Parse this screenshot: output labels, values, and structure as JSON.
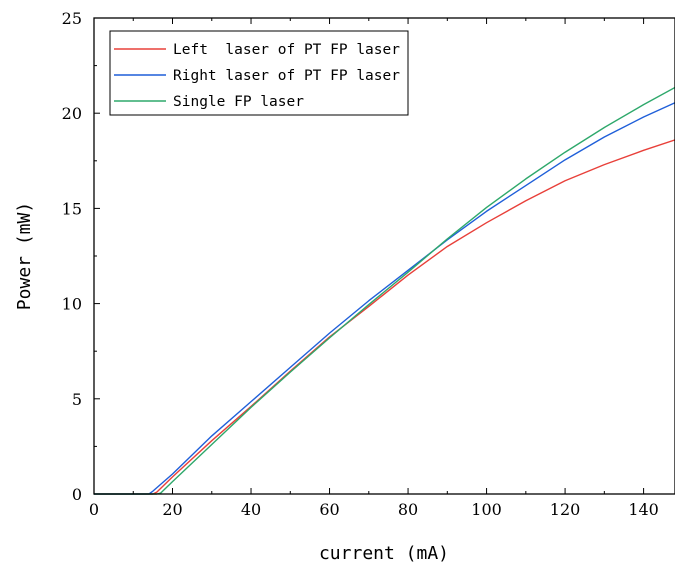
{
  "chart_data": {
    "type": "line",
    "xlabel": "current (mA)",
    "ylabel": "Power (mW)",
    "xlim": [
      0,
      148
    ],
    "ylim": [
      0,
      25
    ],
    "xticks": [
      0,
      20,
      40,
      60,
      80,
      100,
      120,
      140
    ],
    "yticks": [
      0,
      5,
      10,
      15,
      20,
      25
    ],
    "grid": false,
    "legend_position": "top-left",
    "series": [
      {
        "name": "Left  laser of PT FP laser",
        "color": "#e8403a",
        "x": [
          0,
          10,
          15,
          16,
          20,
          30,
          40,
          50,
          60,
          70,
          80,
          90,
          100,
          110,
          120,
          130,
          140,
          148
        ],
        "y": [
          0,
          0,
          0,
          0.1,
          0.9,
          2.8,
          4.6,
          6.45,
          8.25,
          9.85,
          11.5,
          13.0,
          14.25,
          15.4,
          16.45,
          17.3,
          18.05,
          18.6
        ]
      },
      {
        "name": "Right laser of PT FP laser",
        "color": "#1f5fd9",
        "x": [
          0,
          10,
          14,
          15,
          20,
          30,
          40,
          50,
          60,
          70,
          80,
          90,
          100,
          110,
          120,
          130,
          140,
          148
        ],
        "y": [
          0,
          0,
          0,
          0.15,
          1.05,
          3.05,
          4.85,
          6.65,
          8.45,
          10.15,
          11.75,
          13.35,
          14.85,
          16.2,
          17.55,
          18.75,
          19.8,
          20.55
        ]
      },
      {
        "name": "Single FP laser",
        "color": "#2ea86b",
        "x": [
          0,
          10,
          16,
          17,
          20,
          30,
          40,
          50,
          60,
          70,
          80,
          90,
          100,
          110,
          120,
          130,
          140,
          148
        ],
        "y": [
          0,
          0,
          0,
          0.05,
          0.65,
          2.6,
          4.55,
          6.4,
          8.2,
          9.95,
          11.65,
          13.4,
          15.05,
          16.55,
          17.95,
          19.25,
          20.45,
          21.35
        ]
      }
    ]
  }
}
